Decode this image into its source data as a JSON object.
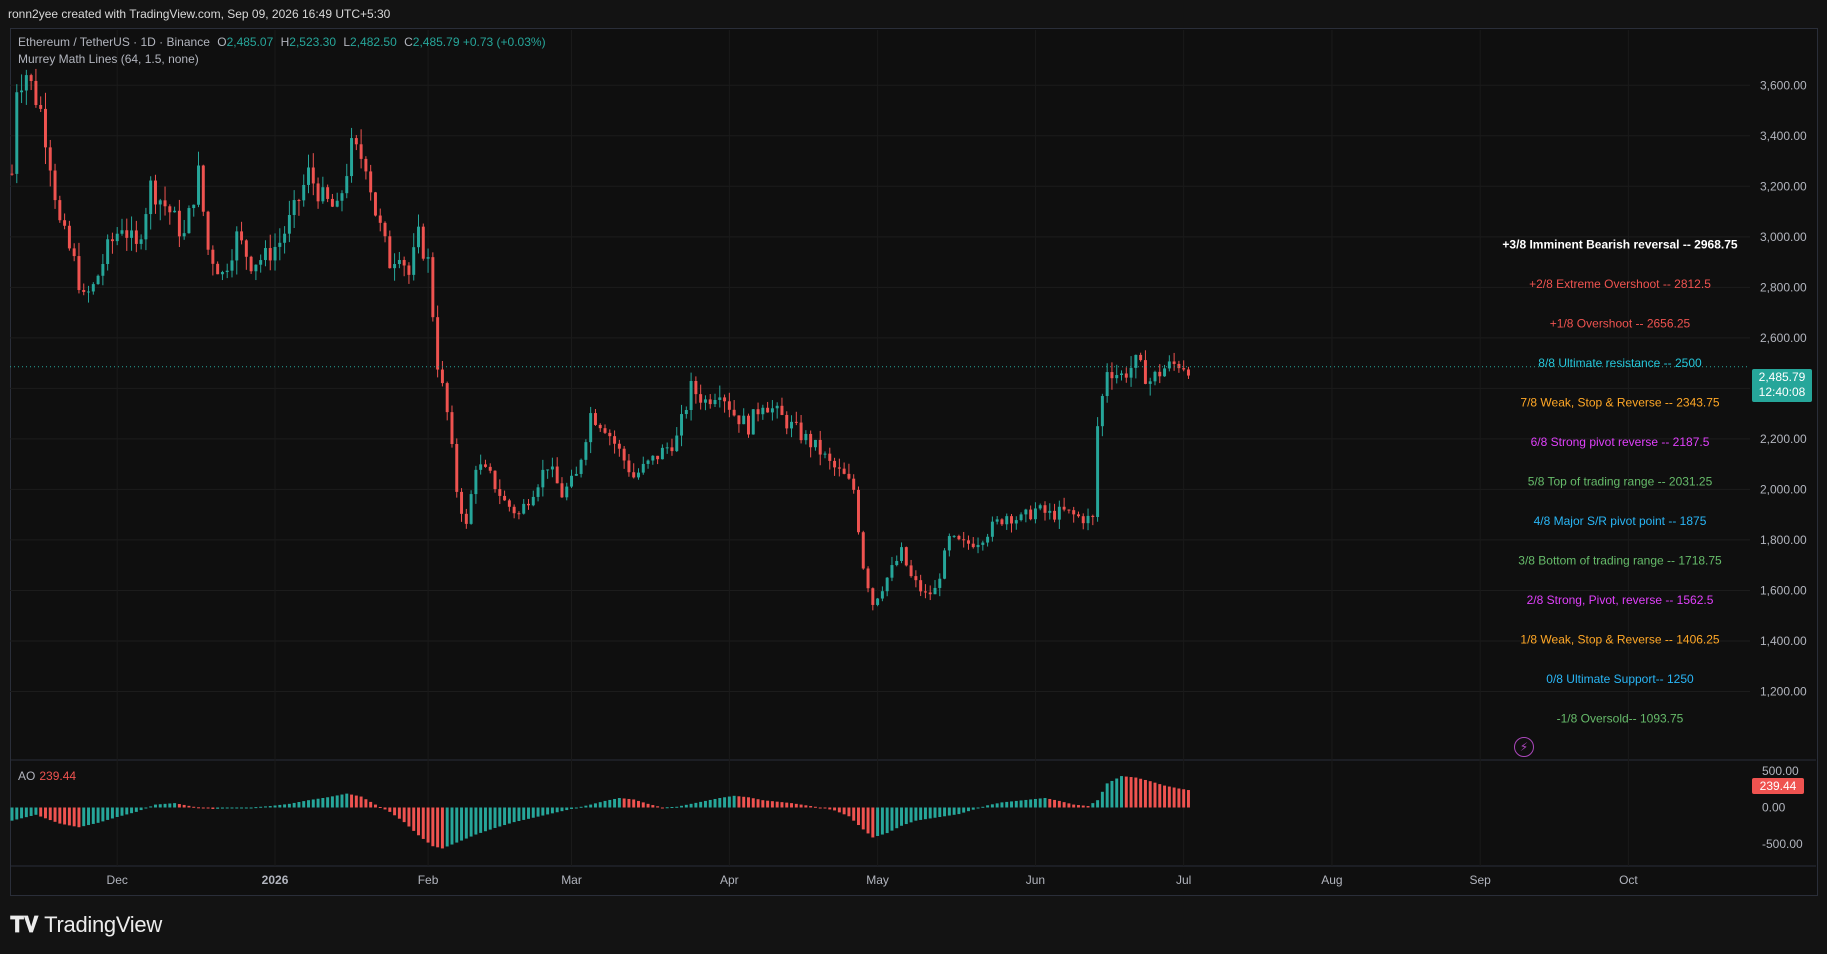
{
  "header": {
    "attribution": "ronn2yee created with TradingView.com, Sep 09, 2026 16:49 UTC+5:30"
  },
  "symbol": {
    "title": "Ethereum / TetherUS · 1D · Binance",
    "open_label": "O",
    "open": "2,485.07",
    "high_label": "H",
    "high": "2,523.30",
    "low_label": "L",
    "low": "2,482.50",
    "close_label": "C",
    "close": "2,485.79",
    "change": "+0.73 (+0.03%)"
  },
  "indicator": {
    "name": "Murrey Math Lines (64, 1.5, none)"
  },
  "ao": {
    "name": "AO",
    "value": "239.44",
    "value_color": "#ef5350"
  },
  "price_badge": {
    "price": "2,485.79",
    "countdown": "12:40:08",
    "color": "#26a69a"
  },
  "footer": {
    "brand": "TradingView"
  },
  "colors": {
    "up": "#26a69a",
    "down": "#ef5350",
    "background": "#0f0f0f",
    "grid": "#1e1e1e"
  },
  "chart_data": [
    {
      "type": "candlestick",
      "title": "Ethereum / TetherUS · 1D · Binance",
      "ylim": [
        1000,
        3700
      ],
      "y_ticks": [
        "3,600.00",
        "3,400.00",
        "3,200.00",
        "3,000.00",
        "2,800.00",
        "2,600.00",
        "2,400.00",
        "2,200.00",
        "2,000.00",
        "1,800.00",
        "1,600.00",
        "1,400.00",
        "1,200.00"
      ],
      "y_tick_values": [
        3600,
        3400,
        3200,
        3000,
        2800,
        2600,
        2400,
        2200,
        2000,
        1800,
        1600,
        1400,
        1200
      ],
      "x_ticks": [
        "Dec",
        "2026",
        "Feb",
        "Mar",
        "Apr",
        "May",
        "Jun",
        "Jul",
        "Aug",
        "Sep",
        "Oct"
      ],
      "x_tick_days": [
        22,
        55,
        87,
        117,
        150,
        181,
        214,
        245,
        276,
        307,
        338
      ],
      "last_day": 294,
      "anchors": [
        [
          0,
          3250
        ],
        [
          1,
          3600
        ],
        [
          3,
          3650
        ],
        [
          6,
          3500
        ],
        [
          8,
          3300
        ],
        [
          10,
          3050
        ],
        [
          13,
          2900
        ],
        [
          15,
          2750
        ],
        [
          17,
          2800
        ],
        [
          20,
          2950
        ],
        [
          23,
          3050
        ],
        [
          26,
          2950
        ],
        [
          29,
          3200
        ],
        [
          33,
          3100
        ],
        [
          36,
          3000
        ],
        [
          39,
          3250
        ],
        [
          41,
          2950
        ],
        [
          44,
          2850
        ],
        [
          47,
          3000
        ],
        [
          50,
          2900
        ],
        [
          53,
          2920
        ],
        [
          56,
          2980
        ],
        [
          59,
          3100
        ],
        [
          62,
          3250
        ],
        [
          65,
          3150
        ],
        [
          68,
          3100
        ],
        [
          71,
          3350
        ],
        [
          74,
          3300
        ],
        [
          76,
          3100
        ],
        [
          79,
          2900
        ],
        [
          81,
          2950
        ],
        [
          83,
          2850
        ],
        [
          85,
          3000
        ],
        [
          87,
          2900
        ],
        [
          89,
          2500
        ],
        [
          91,
          2300
        ],
        [
          93,
          2000
        ],
        [
          95,
          1850
        ],
        [
          97,
          2100
        ],
        [
          100,
          2050
        ],
        [
          103,
          1950
        ],
        [
          106,
          1900
        ],
        [
          109,
          2000
        ],
        [
          112,
          2100
        ],
        [
          115,
          1980
        ],
        [
          118,
          2050
        ],
        [
          121,
          2300
        ],
        [
          124,
          2250
        ],
        [
          127,
          2150
        ],
        [
          130,
          2050
        ],
        [
          133,
          2100
        ],
        [
          136,
          2150
        ],
        [
          139,
          2200
        ],
        [
          142,
          2400
        ],
        [
          145,
          2350
        ],
        [
          148,
          2400
        ],
        [
          151,
          2300
        ],
        [
          154,
          2250
        ],
        [
          157,
          2350
        ],
        [
          160,
          2300
        ],
        [
          163,
          2250
        ],
        [
          166,
          2200
        ],
        [
          169,
          2150
        ],
        [
          171,
          2100
        ],
        [
          174,
          2050
        ],
        [
          176,
          2000
        ],
        [
          178,
          1700
        ],
        [
          180,
          1550
        ],
        [
          183,
          1650
        ],
        [
          186,
          1750
        ],
        [
          188,
          1650
        ],
        [
          191,
          1580
        ],
        [
          193,
          1600
        ],
        [
          196,
          1800
        ],
        [
          199,
          1780
        ],
        [
          202,
          1800
        ],
        [
          205,
          1850
        ],
        [
          208,
          1900
        ],
        [
          211,
          1880
        ],
        [
          214,
          1920
        ],
        [
          217,
          1900
        ],
        [
          220,
          1910
        ],
        [
          223,
          1890
        ],
        [
          226,
          1880
        ],
        [
          227,
          2250
        ],
        [
          229,
          2480
        ],
        [
          232,
          2450
        ],
        [
          235,
          2500
        ],
        [
          238,
          2430
        ],
        [
          241,
          2480
        ],
        [
          244,
          2500
        ],
        [
          246,
          2486
        ]
      ],
      "murrey_levels": [
        {
          "label": "+3/8 Imminent Bearish reversal -- ",
          "value": "2968.75",
          "color": "#ffffff"
        },
        {
          "label": "+2/8 Extreme Overshoot -- ",
          "value": "2812.5",
          "color": "#ef5350"
        },
        {
          "label": "+1/8 Overshoot -- ",
          "value": "2656.25",
          "color": "#ef5350"
        },
        {
          "label": "8/8 Ultimate resistance -- ",
          "value": "2500",
          "color": "#26c6da"
        },
        {
          "label": "7/8 Weak, Stop & Reverse -- ",
          "value": "2343.75",
          "color": "#ffa726"
        },
        {
          "label": "6/8 Strong pivot reverse -- ",
          "value": "2187.5",
          "color": "#e040fb"
        },
        {
          "label": "5/8 Top of trading range -- ",
          "value": "2031.25",
          "color": "#66bb6a"
        },
        {
          "label": "4/8 Major S/R pivot point -- ",
          "value": "1875",
          "color": "#29b6f6"
        },
        {
          "label": "3/8 Bottom of trading range -- ",
          "value": "1718.75",
          "color": "#66bb6a"
        },
        {
          "label": "2/8 Strong, Pivot, reverse -- ",
          "value": "1562.5",
          "color": "#e040fb"
        },
        {
          "label": "1/8 Weak, Stop & Reverse -- ",
          "value": "1406.25",
          "color": "#ffa726"
        },
        {
          "label": "0/8 Ultimate Support-- ",
          "value": "1250",
          "color": "#29b6f6"
        },
        {
          "label": "-1/8 Oversold-- ",
          "value": "1093.75",
          "color": "#66bb6a"
        }
      ]
    },
    {
      "type": "bar",
      "title": "AO",
      "ylim": [
        -650,
        650
      ],
      "y_ticks": [
        "500.00",
        "0.00",
        "-500.00"
      ],
      "y_tick_values": [
        500,
        0,
        -500
      ],
      "anchors": [
        [
          0,
          -180
        ],
        [
          5,
          -100
        ],
        [
          10,
          -220
        ],
        [
          14,
          -270
        ],
        [
          18,
          -210
        ],
        [
          22,
          -130
        ],
        [
          26,
          -60
        ],
        [
          30,
          40
        ],
        [
          34,
          60
        ],
        [
          38,
          10
        ],
        [
          42,
          -20
        ],
        [
          46,
          -10
        ],
        [
          50,
          0
        ],
        [
          54,
          20
        ],
        [
          58,
          50
        ],
        [
          62,
          100
        ],
        [
          66,
          140
        ],
        [
          70,
          190
        ],
        [
          73,
          150
        ],
        [
          76,
          40
        ],
        [
          79,
          -60
        ],
        [
          82,
          -200
        ],
        [
          85,
          -380
        ],
        [
          88,
          -530
        ],
        [
          90,
          -560
        ],
        [
          93,
          -480
        ],
        [
          97,
          -370
        ],
        [
          101,
          -280
        ],
        [
          105,
          -200
        ],
        [
          109,
          -140
        ],
        [
          113,
          -80
        ],
        [
          117,
          -20
        ],
        [
          121,
          40
        ],
        [
          124,
          90
        ],
        [
          127,
          130
        ],
        [
          130,
          110
        ],
        [
          133,
          50
        ],
        [
          136,
          0
        ],
        [
          139,
          10
        ],
        [
          142,
          50
        ],
        [
          145,
          90
        ],
        [
          148,
          130
        ],
        [
          151,
          160
        ],
        [
          154,
          140
        ],
        [
          157,
          100
        ],
        [
          160,
          80
        ],
        [
          163,
          60
        ],
        [
          166,
          30
        ],
        [
          169,
          0
        ],
        [
          172,
          -40
        ],
        [
          175,
          -120
        ],
        [
          178,
          -300
        ],
        [
          180,
          -410
        ],
        [
          183,
          -350
        ],
        [
          186,
          -250
        ],
        [
          189,
          -180
        ],
        [
          192,
          -150
        ],
        [
          195,
          -120
        ],
        [
          198,
          -90
        ],
        [
          201,
          -30
        ],
        [
          204,
          30
        ],
        [
          207,
          70
        ],
        [
          210,
          90
        ],
        [
          213,
          110
        ],
        [
          216,
          130
        ],
        [
          219,
          90
        ],
        [
          222,
          40
        ],
        [
          225,
          20
        ],
        [
          227,
          100
        ],
        [
          229,
          330
        ],
        [
          232,
          430
        ],
        [
          235,
          410
        ],
        [
          238,
          360
        ],
        [
          241,
          300
        ],
        [
          244,
          260
        ],
        [
          246,
          239
        ]
      ]
    }
  ]
}
